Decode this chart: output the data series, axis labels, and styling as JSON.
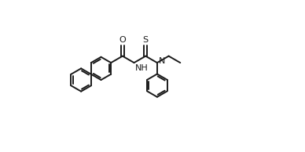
{
  "bg_color": "#ffffff",
  "line_color": "#1a1a1a",
  "lw": 1.4,
  "fs": 8.0,
  "figsize": [
    3.88,
    1.94
  ],
  "dpi": 100,
  "r": 0.38,
  "ar": 0.055,
  "bl": 0.44,
  "labels": {
    "O": "O",
    "S": "S",
    "NH": "NH",
    "N": "N"
  }
}
